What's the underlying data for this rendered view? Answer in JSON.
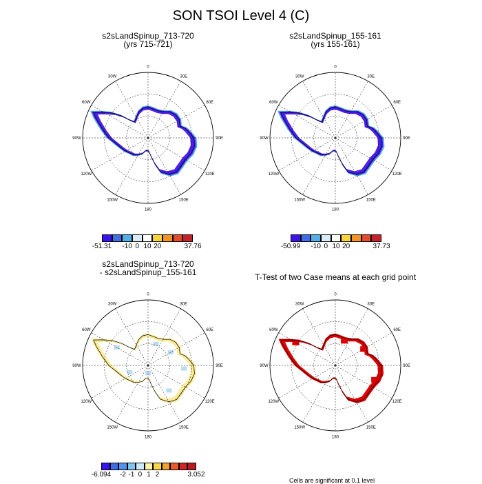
{
  "title": "SON TSOI Level 4 (C)",
  "panels": [
    {
      "id": "tl",
      "title_line1": "s2sLandSpinup_713-720",
      "title_line2": "(yrs 715-721)",
      "colorbar": {
        "labels": [
          "-51.31",
          "-10",
          "0",
          "10",
          "20",
          "37.76"
        ]
      }
    },
    {
      "id": "tr",
      "title_line1": "s2sLandSpinup_155-161",
      "title_line2": "(yrs 155-161)",
      "colorbar": {
        "labels": [
          "-50.99",
          "-10",
          "0",
          "10",
          "20",
          "37.73"
        ]
      }
    },
    {
      "id": "bl",
      "title_line1": "s2sLandSpinup_713-720",
      "title_line2": "- s2sLandSpinup_155-161",
      "colorbar": {
        "labels": [
          "-6.094",
          "-2",
          "-1",
          "0",
          "1",
          "2",
          "3.052"
        ]
      }
    },
    {
      "id": "br",
      "title_line1": "T-Test of two Case means at each grid point",
      "title_line2": ""
    }
  ],
  "longitude_labels": [
    "0",
    "30E",
    "60E",
    "90E",
    "120E",
    "150E",
    "180",
    "150W",
    "120W",
    "90W",
    "60W",
    "30W"
  ],
  "footnote": "Cells are significant at 0.1 level",
  "colors": {
    "abs_scale": [
      "#3a14ee",
      "#3f6de8",
      "#52b1ec",
      "#d9ecf8",
      "#ffffff",
      "#fad23a",
      "#f39322",
      "#e54a2a",
      "#c8202a"
    ],
    "diff_scale": [
      "#3a14ee",
      "#3f6de8",
      "#4f95e9",
      "#7ec6ef",
      "#cde8f7",
      "#fdf3ad",
      "#fbd64a",
      "#f2a02f",
      "#ea5a2b",
      "#d52625",
      "#b81a24"
    ],
    "signif": "#e00000",
    "blue_fill": "#4a1ff0",
    "diff_yellow": "#faeb96",
    "diff_lightblue": "#b9dcf2"
  }
}
